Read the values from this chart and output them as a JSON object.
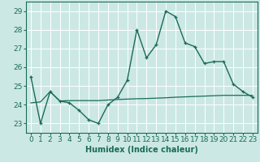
{
  "xlabel": "Humidex (Indice chaleur)",
  "background_color": "#cce8e4",
  "grid_color": "#ffffff",
  "line_color": "#1a6b5a",
  "xlim": [
    -0.5,
    23.5
  ],
  "ylim": [
    22.5,
    29.5
  ],
  "xticks": [
    0,
    1,
    2,
    3,
    4,
    5,
    6,
    7,
    8,
    9,
    10,
    11,
    12,
    13,
    14,
    15,
    16,
    17,
    18,
    19,
    20,
    21,
    22,
    23
  ],
  "yticks": [
    23,
    24,
    25,
    26,
    27,
    28,
    29
  ],
  "line1_x": [
    0,
    1,
    2,
    3,
    4,
    5,
    6,
    7,
    8,
    9,
    10,
    11,
    12,
    13,
    14,
    15,
    16,
    17,
    18,
    19,
    20,
    21,
    22,
    23
  ],
  "line1_y": [
    25.5,
    23.0,
    24.7,
    24.2,
    24.1,
    23.7,
    23.2,
    23.0,
    24.0,
    24.4,
    25.3,
    28.0,
    26.5,
    27.2,
    29.0,
    28.7,
    27.3,
    27.1,
    26.2,
    26.3,
    26.3,
    25.1,
    24.7,
    24.4
  ],
  "line2_x": [
    0,
    1,
    2,
    3,
    4,
    5,
    6,
    7,
    8,
    9,
    10,
    11,
    12,
    13,
    14,
    15,
    16,
    17,
    18,
    19,
    20,
    21,
    22,
    23
  ],
  "line2_y": [
    24.1,
    24.15,
    24.7,
    24.2,
    24.22,
    24.22,
    24.22,
    24.22,
    24.25,
    24.28,
    24.3,
    24.32,
    24.33,
    24.35,
    24.37,
    24.4,
    24.42,
    24.44,
    24.46,
    24.48,
    24.5,
    24.5,
    24.5,
    24.5
  ],
  "axis_fontsize": 7,
  "tick_fontsize": 6.5,
  "xlabel_fontsize": 7
}
